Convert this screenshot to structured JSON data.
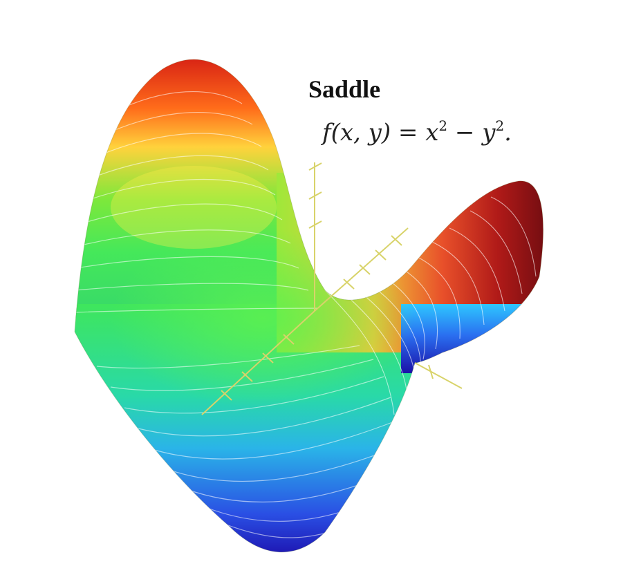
{
  "title": "Saddle",
  "formula": {
    "lhs": "f(x, y) = x",
    "exp1": "2",
    "mid": " − y",
    "exp2": "2",
    "tail": "."
  },
  "colors": {
    "background": "#ffffff",
    "axis": "#d8d36a",
    "contour": "#ffffff",
    "colormap": [
      "#1e00a8",
      "#1f8fff",
      "#29e7d6",
      "#48f04a",
      "#b7f43a",
      "#ffd23c",
      "#ff7a18",
      "#d61f14"
    ]
  },
  "surface": {
    "shape": "hyperbolic paraboloid",
    "coloring": "height-mapped rainbow with contour lines"
  }
}
